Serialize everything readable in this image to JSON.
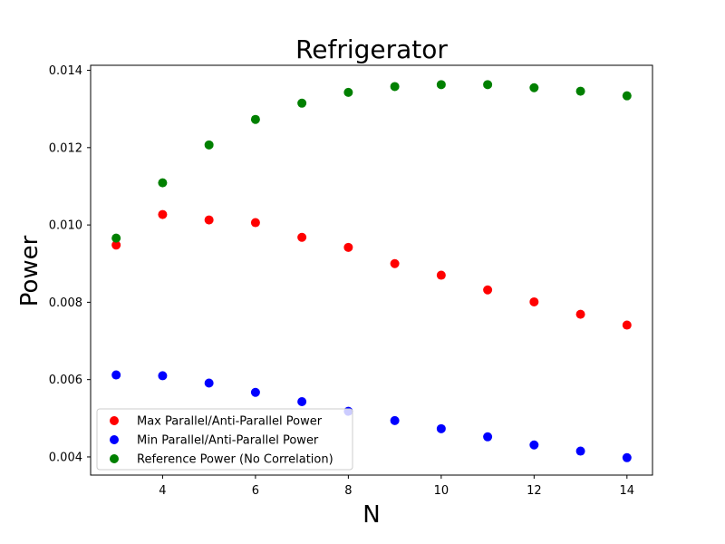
{
  "chart_data": {
    "type": "scatter",
    "title": "Refrigerator",
    "xlabel": "N",
    "ylabel": "Power",
    "xlim": [
      2.45,
      14.55
    ],
    "ylim": [
      0.00353,
      0.01413
    ],
    "xticks": [
      4,
      6,
      8,
      10,
      12,
      14
    ],
    "xtick_labels": [
      "4",
      "6",
      "8",
      "10",
      "12",
      "14"
    ],
    "yticks": [
      0.004,
      0.006,
      0.008,
      0.01,
      0.012,
      0.014
    ],
    "ytick_labels": [
      "0.004",
      "0.006",
      "0.008",
      "0.010",
      "0.012",
      "0.014"
    ],
    "grid": false,
    "legend_position": "lower-left",
    "series": [
      {
        "name": "Max Parallel/Anti-Parallel Power",
        "color": "#ff0000",
        "x": [
          3,
          4,
          5,
          6,
          7,
          8,
          9,
          10,
          11,
          12,
          13,
          14
        ],
        "y": [
          0.00948,
          0.01027,
          0.01013,
          0.01006,
          0.00968,
          0.00942,
          0.009,
          0.0087,
          0.00832,
          0.00801,
          0.00769,
          0.00741
        ]
      },
      {
        "name": "Min Parallel/Anti-Parallel Power",
        "color": "#0000ff",
        "x": [
          3,
          4,
          5,
          6,
          7,
          8,
          9,
          10,
          11,
          12,
          13,
          14
        ],
        "y": [
          0.00612,
          0.0061,
          0.00591,
          0.00567,
          0.00543,
          0.00518,
          0.00494,
          0.00473,
          0.00452,
          0.00431,
          0.00415,
          0.00398
        ]
      },
      {
        "name": "Reference Power (No Correlation)",
        "color": "#008000",
        "x": [
          3,
          4,
          5,
          6,
          7,
          8,
          9,
          10,
          11,
          12,
          13,
          14
        ],
        "y": [
          0.00966,
          0.01109,
          0.01207,
          0.01273,
          0.01315,
          0.01343,
          0.01358,
          0.01363,
          0.01363,
          0.01355,
          0.01346,
          0.01334
        ]
      }
    ]
  }
}
